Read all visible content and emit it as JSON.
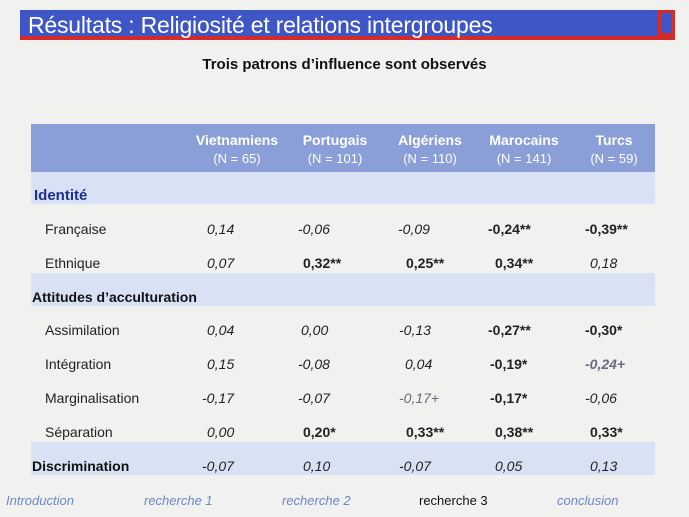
{
  "title": "Résultats : Religiosité et relations  intergroupes",
  "subtitle": "Trois patrons d’influence sont observés",
  "columns": [
    {
      "name": "Vietnamiens",
      "n": "(N = 65)"
    },
    {
      "name": "Portugais",
      "n": "(N = 101)"
    },
    {
      "name": "Algériens",
      "n": "(N = 110)"
    },
    {
      "name": "Marocains",
      "n": "(N = 141)"
    },
    {
      "name": "Turcs",
      "n": "(N = 59)"
    }
  ],
  "sections": {
    "identite": "Identité",
    "attitudes": "Attitudes d’acculturation",
    "discrimination": "Discrimination"
  },
  "rows": {
    "francaise": {
      "label": "Française",
      "values": [
        "0,14",
        "-0,06",
        "-0,09",
        "-0,24**",
        "-0,39**"
      ]
    },
    "ethnique": {
      "label": "Ethnique",
      "values": [
        "0,07",
        "0,32**",
        "0,25**",
        "0,34**",
        "0,18"
      ]
    },
    "assimilation": {
      "label": "Assimilation",
      "values": [
        "0,04",
        "0,00",
        "-0,13",
        "-0,27**",
        "-0,30*"
      ]
    },
    "integration": {
      "label": "Intégration",
      "values": [
        "0,15",
        "-0,08",
        "0,04",
        "-0,19*",
        "-0,24+"
      ]
    },
    "marginalisation": {
      "label": "Marginalisation",
      "values": [
        "-0,17",
        "-0,07",
        "-0,17+",
        "-0,17*",
        "-0,06"
      ]
    },
    "separation": {
      "label": "Séparation",
      "values": [
        "0,00",
        "0,20*",
        "0,33**",
        "0,38**",
        "0,33*"
      ]
    },
    "discrimination": {
      "values": [
        "-0,07",
        "0,10",
        "-0,07",
        "0,05",
        "0,13"
      ]
    }
  },
  "nav": [
    "Introduction",
    "recherche 1",
    "recherche 2",
    "recherche 3",
    "conclusion"
  ]
}
